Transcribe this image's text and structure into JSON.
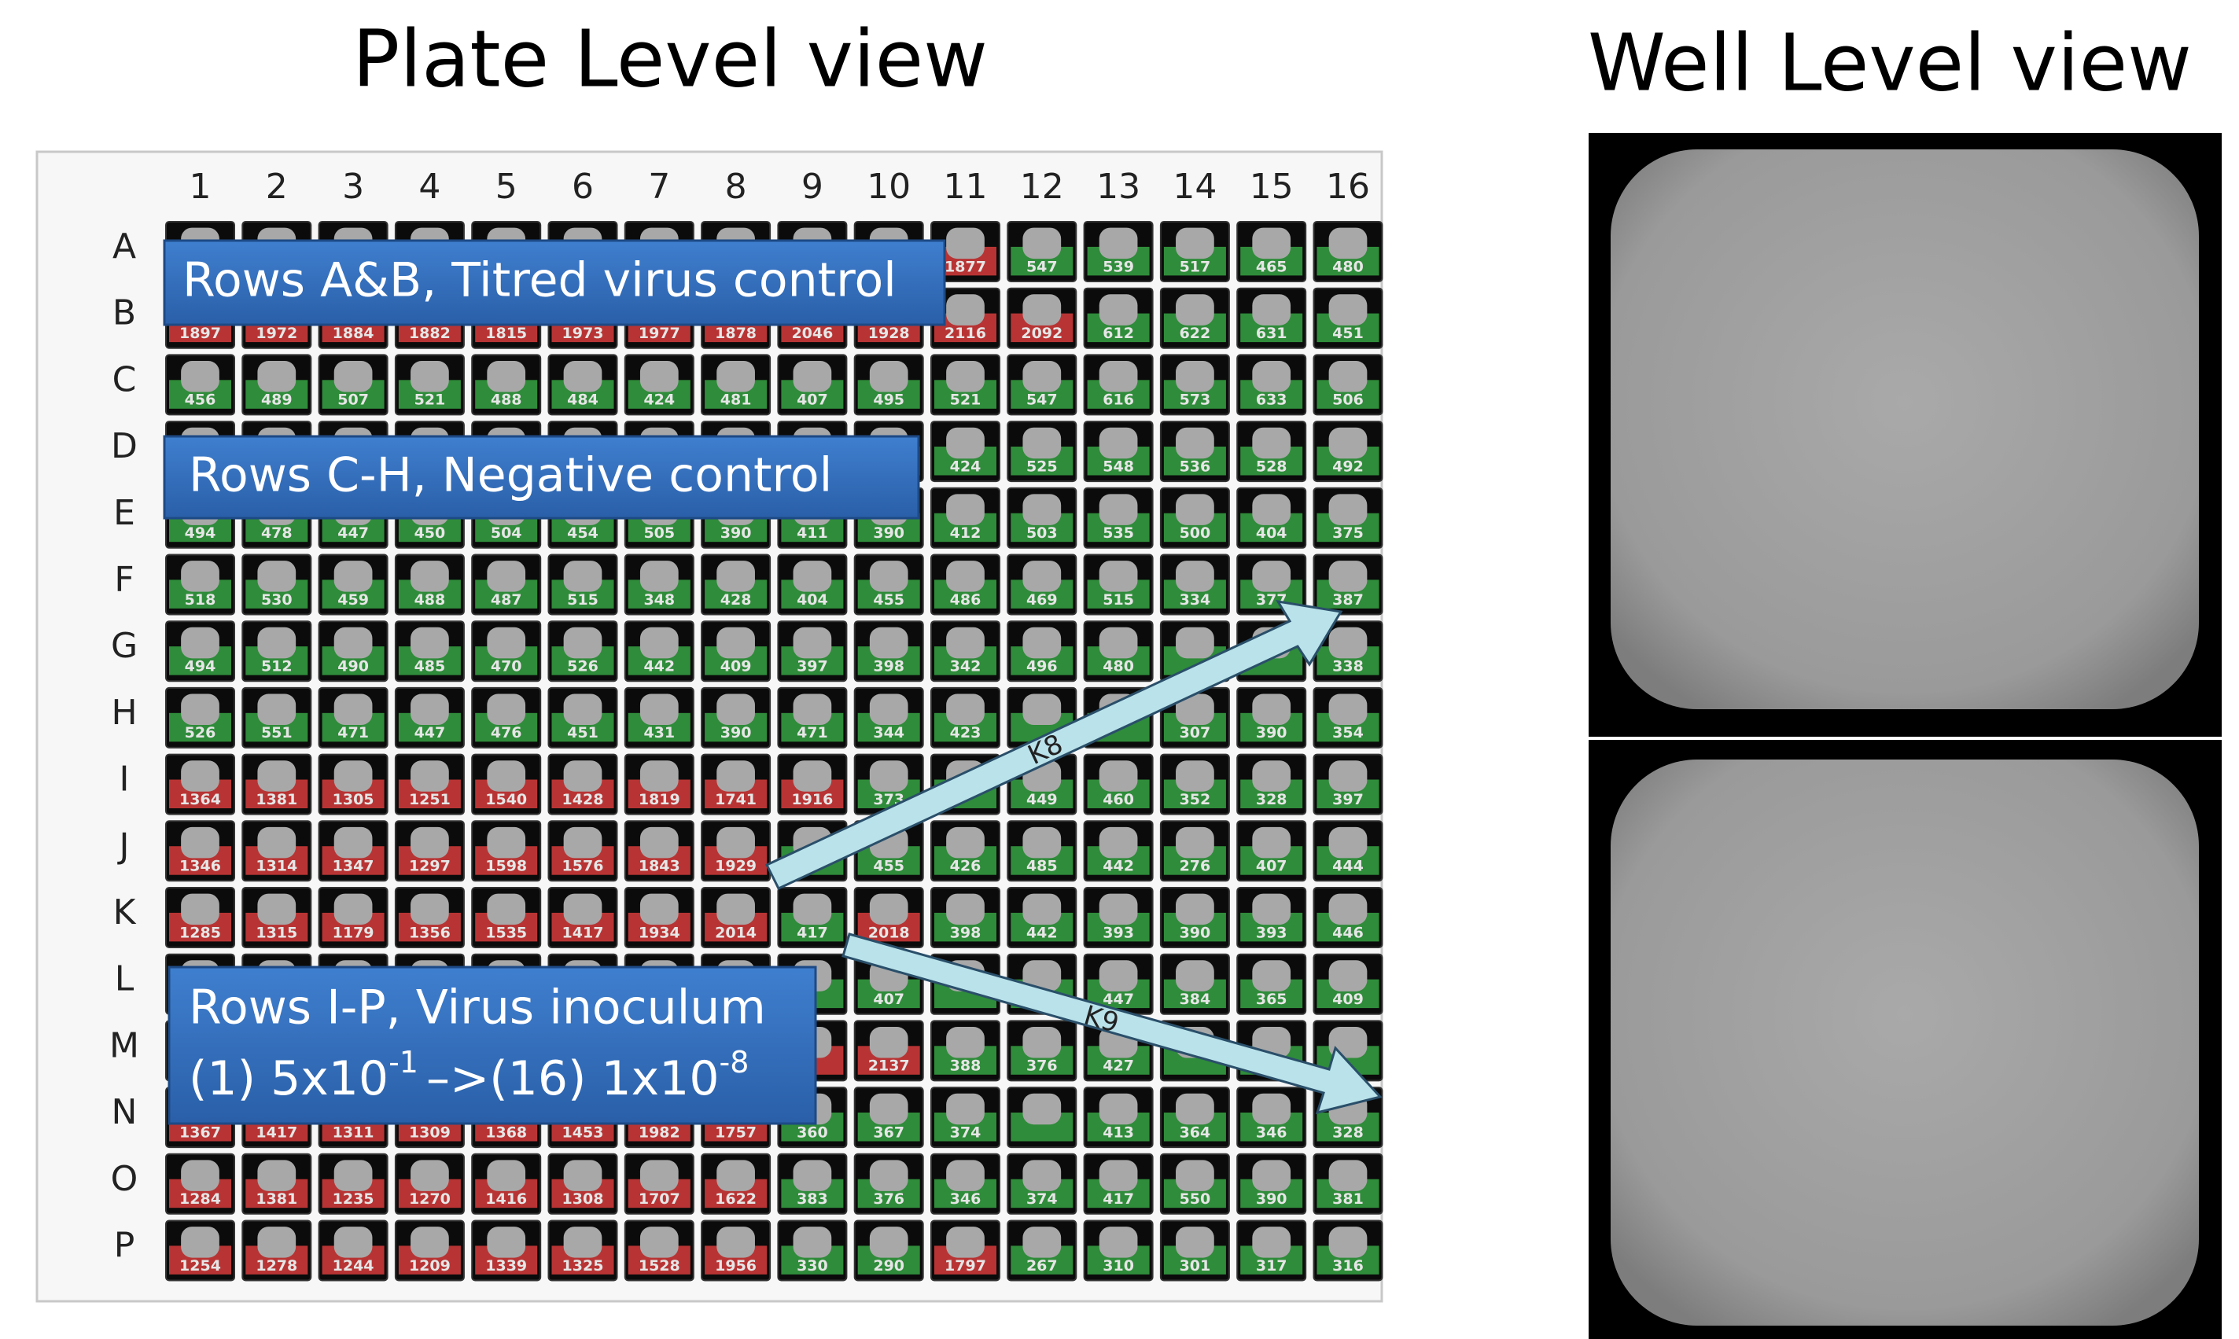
{
  "plate_view": {
    "title": "Plate Level view",
    "columns": [
      1,
      2,
      3,
      4,
      5,
      6,
      7,
      8,
      9,
      10,
      11,
      12,
      13,
      14,
      15,
      16
    ],
    "rows": [
      "A",
      "B",
      "C",
      "D",
      "E",
      "F",
      "G",
      "H",
      "I",
      "J",
      "K",
      "L",
      "M",
      "N",
      "O",
      "P"
    ],
    "well_values": [
      [
        null,
        null,
        null,
        null,
        null,
        null,
        null,
        null,
        null,
        null,
        1877,
        547,
        539,
        517,
        465,
        480
      ],
      [
        1897,
        1972,
        1884,
        1882,
        1815,
        1973,
        1977,
        1878,
        2046,
        1928,
        2116,
        2092,
        612,
        622,
        631,
        451
      ],
      [
        456,
        489,
        507,
        521,
        488,
        484,
        424,
        481,
        407,
        495,
        521,
        547,
        616,
        573,
        633,
        506
      ],
      [
        null,
        null,
        null,
        null,
        null,
        null,
        null,
        null,
        null,
        null,
        424,
        525,
        548,
        536,
        528,
        492
      ],
      [
        494,
        478,
        447,
        450,
        504,
        454,
        505,
        390,
        411,
        390,
        412,
        503,
        535,
        500,
        404,
        375
      ],
      [
        518,
        530,
        459,
        488,
        487,
        515,
        348,
        428,
        404,
        455,
        486,
        469,
        515,
        334,
        377,
        387
      ],
      [
        494,
        512,
        490,
        485,
        470,
        526,
        442,
        409,
        397,
        398,
        342,
        496,
        480,
        null,
        null,
        338
      ],
      [
        526,
        551,
        471,
        447,
        476,
        451,
        431,
        390,
        471,
        344,
        423,
        null,
        null,
        307,
        390,
        354
      ],
      [
        1364,
        1381,
        1305,
        1251,
        1540,
        1428,
        1819,
        1741,
        1916,
        373,
        null,
        449,
        460,
        352,
        328,
        397
      ],
      [
        1346,
        1314,
        1347,
        1297,
        1598,
        1576,
        1843,
        1929,
        null,
        455,
        426,
        485,
        442,
        276,
        407,
        444
      ],
      [
        1285,
        1315,
        1179,
        1356,
        1535,
        1417,
        1934,
        2014,
        417,
        2018,
        398,
        442,
        393,
        390,
        393,
        446
      ],
      [
        null,
        null,
        null,
        null,
        null,
        null,
        null,
        null,
        null,
        407,
        null,
        null,
        447,
        384,
        365,
        409
      ],
      [
        null,
        null,
        null,
        null,
        null,
        null,
        null,
        null,
        null,
        2137,
        388,
        376,
        427,
        null,
        null,
        null
      ],
      [
        1367,
        1417,
        1311,
        1309,
        1368,
        1453,
        1982,
        1757,
        360,
        367,
        374,
        null,
        413,
        364,
        346,
        328
      ],
      [
        1284,
        1381,
        1235,
        1270,
        1416,
        1308,
        1707,
        1622,
        383,
        376,
        346,
        374,
        417,
        550,
        390,
        381
      ],
      [
        1254,
        1278,
        1244,
        1209,
        1339,
        1325,
        1528,
        1956,
        330,
        290,
        1797,
        267,
        310,
        301,
        317,
        316
      ]
    ],
    "well_colors": [
      "RRRRRRRRRRRGGGGG",
      "RRRRRRRRRRRRGGGG",
      "GGGGGGGGGGGGGGGG",
      "GGGGGGGGGGGGGGGG",
      "GGGGGGGGGGGGGGGG",
      "GGGGGGGGGGGGGGGG",
      "GGGGGGGGGGGGGGGG",
      "GGGGGGGGGGGGGGGG",
      "RRRRRRRRRGGGGGGG",
      "RRRRRRRRGGGGGGGG",
      "RRRRRRRRGRGGGGGG",
      "RRRRRRRRGGGGGGGG",
      "RRRRRRRRRRGGGGGG",
      "RRRRRRRRGGGGGGGG",
      "RRRRRRRRGGGGGGGG",
      "RRRRRRRRGGRGGGGG"
    ],
    "colors": {
      "R": "#b83434",
      "G": "#2f8c3a"
    },
    "annotations": [
      {
        "text": "Rows A&B, Titred virus control"
      },
      {
        "text": "Rows C-H, Negative control"
      },
      {
        "text": "Rows I-P, Virus inoculum",
        "line2": [
          "(1) 5x10",
          "-1",
          "–>(16) 1x10",
          "-8"
        ]
      }
    ],
    "arrows": [
      {
        "label": "K8"
      },
      {
        "label": "K9"
      }
    ]
  },
  "well_view": {
    "title": "Well Level view"
  }
}
